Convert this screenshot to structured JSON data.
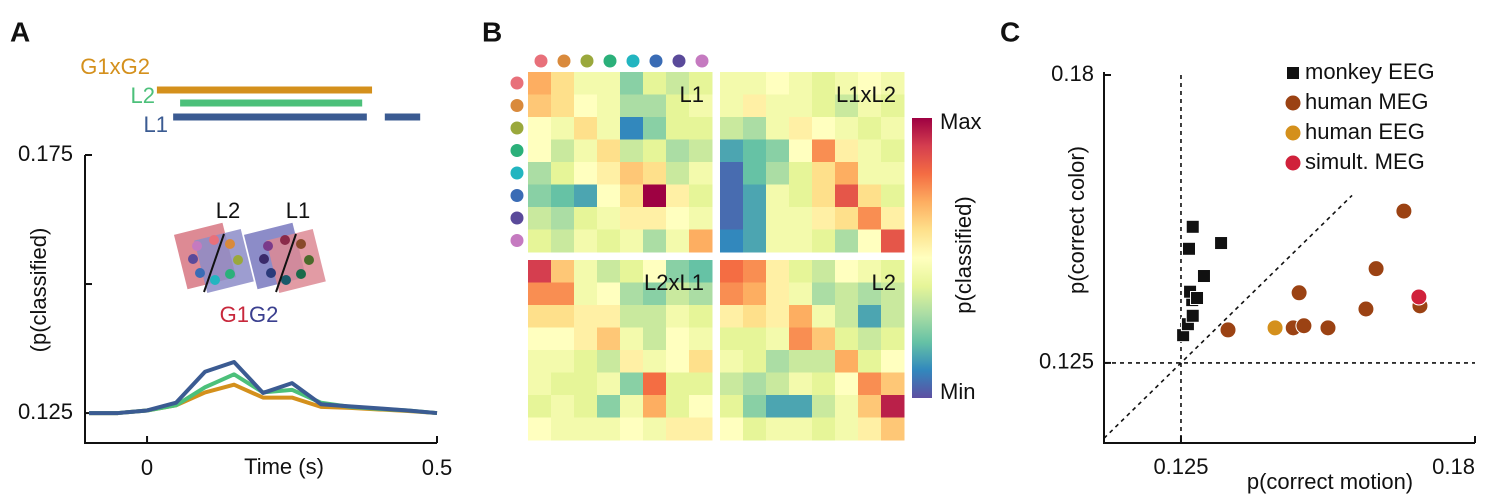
{
  "panel_labels": [
    "A",
    "B",
    "C"
  ],
  "chart_data": [
    {
      "type": "line",
      "xlabel": "Time (s)",
      "ylabel": "(p(classified)",
      "xlim": [
        -0.107,
        0.5
      ],
      "ylim": [
        0.1192,
        0.175
      ],
      "xticks": [
        0,
        0.5
      ],
      "yticks": [
        0.125,
        0.175
      ],
      "yminor_ticks": [
        0.15
      ],
      "x": [
        -0.1,
        -0.05,
        0,
        0.05,
        0.1,
        0.15,
        0.2,
        0.25,
        0.3,
        0.35,
        0.4,
        0.45,
        0.5
      ],
      "series": [
        {
          "name": "G1xG2",
          "color": "#d4901c",
          "values": [
            0.125,
            0.125,
            0.1255,
            0.1265,
            0.129,
            0.1305,
            0.128,
            0.128,
            0.1262,
            0.126,
            0.1257,
            0.1254,
            0.125
          ]
        },
        {
          "name": "L2",
          "color": "#4cc07a",
          "values": [
            0.125,
            0.125,
            0.1255,
            0.1265,
            0.13,
            0.1325,
            0.129,
            0.1295,
            0.127,
            0.1262,
            0.1258,
            0.1255,
            0.125
          ]
        },
        {
          "name": "L1",
          "color": "#3b5b92",
          "values": [
            0.125,
            0.125,
            0.1255,
            0.127,
            0.133,
            0.1349,
            0.1289,
            0.1308,
            0.1267,
            0.1263,
            0.1259,
            0.1255,
            0.125
          ]
        }
      ],
      "sig_bars": [
        {
          "intervals": [
            [
              0.017,
              0.388
            ]
          ]
        },
        {
          "intervals": [
            [
              0.057,
              0.371
            ]
          ]
        },
        {
          "intervals": [
            [
              0.045,
              0.379
            ],
            [
              0.41,
              0.471
            ]
          ]
        }
      ],
      "inset": {
        "labels": [
          "L2",
          "L1"
        ],
        "groups": [
          "G1",
          "G2"
        ],
        "group_colors": [
          "#c8283c",
          "#3a3f8f"
        ]
      }
    },
    {
      "type": "heatmap",
      "colormap": "Spectral_r",
      "stimulus_colors": [
        "#e8707a",
        "#d98a3c",
        "#9aa83c",
        "#2bb07a",
        "#22b5c0",
        "#3a6cb5",
        "#5a4a9a",
        "#c57ac0"
      ],
      "colorbar": {
        "label": "p(classified)",
        "lim": [
          0,
          1
        ],
        "ticks": [
          {
            "value": 1,
            "label": "Max"
          },
          {
            "value": 0,
            "label": "Min"
          }
        ]
      },
      "matrices": [
        {
          "name": "L1",
          "values": [
            [
              0.7,
              0.6,
              0.45,
              0.45,
              0.25,
              0.4,
              0.35,
              0.4
            ],
            [
              0.65,
              0.6,
              0.5,
              0.45,
              0.3,
              0.3,
              0.4,
              0.45
            ],
            [
              0.5,
              0.45,
              0.6,
              0.45,
              0.1,
              0.25,
              0.4,
              0.4
            ],
            [
              0.5,
              0.35,
              0.45,
              0.6,
              0.35,
              0.4,
              0.3,
              0.35
            ],
            [
              0.3,
              0.4,
              0.5,
              0.55,
              0.65,
              0.6,
              0.35,
              0.45
            ],
            [
              0.25,
              0.2,
              0.15,
              0.5,
              0.6,
              1.0,
              0.55,
              0.4
            ],
            [
              0.35,
              0.3,
              0.4,
              0.45,
              0.55,
              0.55,
              0.5,
              0.45
            ],
            [
              0.4,
              0.35,
              0.45,
              0.4,
              0.45,
              0.3,
              0.45,
              0.7
            ]
          ]
        },
        {
          "name": "L1xL2",
          "values": [
            [
              0.45,
              0.45,
              0.5,
              0.45,
              0.4,
              0.45,
              0.5,
              0.45
            ],
            [
              0.45,
              0.55,
              0.45,
              0.45,
              0.4,
              0.35,
              0.45,
              0.4
            ],
            [
              0.35,
              0.3,
              0.45,
              0.55,
              0.5,
              0.45,
              0.4,
              0.45
            ],
            [
              0.15,
              0.2,
              0.25,
              0.5,
              0.75,
              0.55,
              0.45,
              0.4
            ],
            [
              0.05,
              0.2,
              0.3,
              0.4,
              0.6,
              0.7,
              0.45,
              0.45
            ],
            [
              0.05,
              0.15,
              0.45,
              0.4,
              0.6,
              0.85,
              0.6,
              0.4
            ],
            [
              0.05,
              0.15,
              0.45,
              0.45,
              0.55,
              0.6,
              0.75,
              0.55
            ],
            [
              0.1,
              0.15,
              0.45,
              0.45,
              0.4,
              0.3,
              0.5,
              0.85
            ]
          ]
        },
        {
          "name": "L2xL1",
          "values": [
            [
              0.9,
              0.65,
              0.45,
              0.35,
              0.4,
              0.5,
              0.25,
              0.2
            ],
            [
              0.75,
              0.75,
              0.45,
              0.5,
              0.3,
              0.25,
              0.35,
              0.3
            ],
            [
              0.6,
              0.6,
              0.55,
              0.55,
              0.35,
              0.35,
              0.45,
              0.4
            ],
            [
              0.5,
              0.5,
              0.55,
              0.65,
              0.45,
              0.35,
              0.5,
              0.45
            ],
            [
              0.45,
              0.45,
              0.4,
              0.35,
              0.55,
              0.45,
              0.5,
              0.6
            ],
            [
              0.45,
              0.4,
              0.4,
              0.45,
              0.25,
              0.8,
              0.4,
              0.4
            ],
            [
              0.4,
              0.45,
              0.4,
              0.25,
              0.45,
              0.7,
              0.4,
              0.5
            ],
            [
              0.5,
              0.45,
              0.45,
              0.45,
              0.5,
              0.45,
              0.55,
              0.55
            ]
          ]
        },
        {
          "name": "L2",
          "values": [
            [
              0.8,
              0.75,
              0.55,
              0.4,
              0.35,
              0.5,
              0.45,
              0.4
            ],
            [
              0.75,
              0.7,
              0.55,
              0.45,
              0.3,
              0.35,
              0.3,
              0.35
            ],
            [
              0.55,
              0.6,
              0.55,
              0.7,
              0.45,
              0.35,
              0.15,
              0.35
            ],
            [
              0.4,
              0.4,
              0.45,
              0.75,
              0.65,
              0.4,
              0.35,
              0.4
            ],
            [
              0.45,
              0.4,
              0.3,
              0.35,
              0.35,
              0.7,
              0.4,
              0.5
            ],
            [
              0.35,
              0.3,
              0.35,
              0.45,
              0.4,
              0.5,
              0.75,
              0.65
            ],
            [
              0.4,
              0.25,
              0.15,
              0.15,
              0.35,
              0.45,
              0.65,
              0.95
            ],
            [
              0.5,
              0.4,
              0.45,
              0.45,
              0.4,
              0.45,
              0.55,
              0.65
            ]
          ]
        }
      ]
    },
    {
      "type": "scatter",
      "xlabel": "p(correct motion)",
      "ylabel": "p(correct color)",
      "xlim": [
        0.1106,
        0.18
      ],
      "ylim": [
        0.1097,
        0.18
      ],
      "xticks": [
        0.125,
        0.18
      ],
      "yticks": [
        0.125,
        0.18
      ],
      "reference_lines": {
        "x": 0.125,
        "y": 0.125,
        "diagonal_to": 0.157
      },
      "legend": "upper right",
      "series": [
        {
          "name": "monkey EEG",
          "color": "#111111",
          "marker": "square",
          "x": [
            0.1254,
            0.1263,
            0.1272,
            0.1271,
            0.1267,
            0.128,
            0.1293,
            0.1265,
            0.1272,
            0.1325
          ],
          "values": [
            0.1303,
            0.1324,
            0.134,
            0.137,
            0.1386,
            0.1374,
            0.1416,
            0.1468,
            0.151,
            0.1479
          ]
        },
        {
          "name": "human MEG",
          "color": "#9b4213",
          "marker": "circle",
          "x": [
            0.1338,
            0.146,
            0.148,
            0.1525,
            0.1471,
            0.1596,
            0.1615,
            0.1667,
            0.1697
          ],
          "values": [
            0.1313,
            0.1317,
            0.1321,
            0.1317,
            0.1384,
            0.1353,
            0.143,
            0.154,
            0.1359
          ]
        },
        {
          "name": "human EEG",
          "color": "#d4901c",
          "marker": "circle",
          "x": [
            0.1426
          ],
          "values": [
            0.1317
          ]
        },
        {
          "name": "simult. MEG",
          "color": "#d0213b",
          "marker": "circle",
          "x": [
            0.1695
          ],
          "values": [
            0.1376
          ]
        }
      ]
    }
  ]
}
